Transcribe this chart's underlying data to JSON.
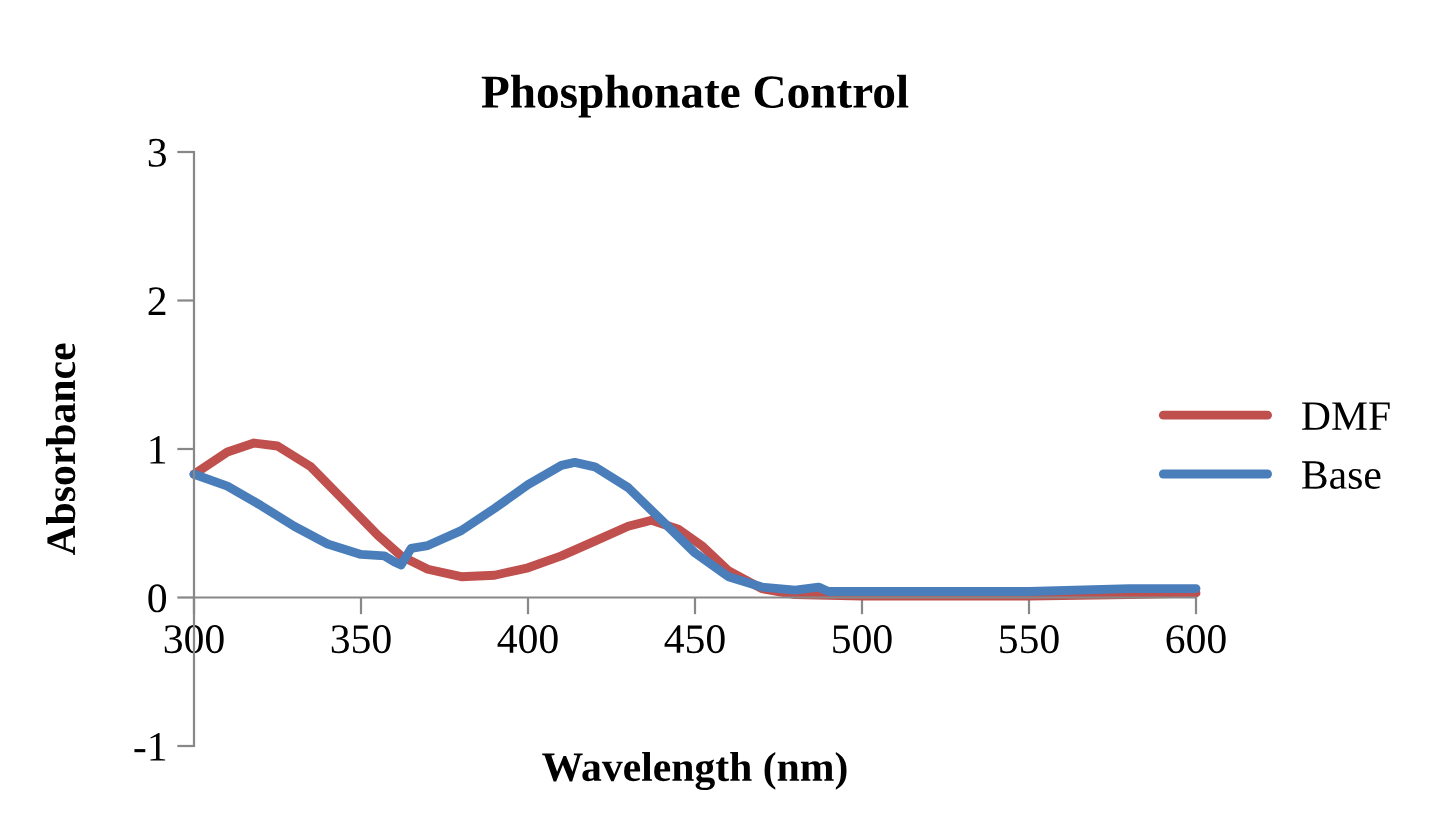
{
  "chart_data": {
    "type": "line",
    "title": "Phosphonate Control",
    "xlabel": "Wavelength (nm)",
    "ylabel": "Absorbance",
    "xlim": [
      300,
      600
    ],
    "xticks": [
      300,
      350,
      400,
      450,
      500,
      550,
      600
    ],
    "ylim": [
      -1,
      3
    ],
    "yticks": [
      -1,
      0,
      1,
      2,
      3
    ],
    "grid": false,
    "legend": "right",
    "marker": "none",
    "line_style": "solid",
    "series": [
      {
        "name": "DMF",
        "color": "#c0504d",
        "x": [
          300,
          310,
          318,
          325,
          335,
          345,
          355,
          362,
          370,
          380,
          390,
          400,
          410,
          420,
          430,
          437,
          445,
          452,
          460,
          470,
          480,
          500,
          550,
          580,
          600
        ],
        "values": [
          0.83,
          0.98,
          1.04,
          1.02,
          0.88,
          0.65,
          0.42,
          0.28,
          0.19,
          0.14,
          0.15,
          0.2,
          0.28,
          0.38,
          0.48,
          0.52,
          0.46,
          0.35,
          0.18,
          0.06,
          0.02,
          0.01,
          0.01,
          0.02,
          0.03
        ]
      },
      {
        "name": "Base",
        "color": "#4a7ebb",
        "x": [
          300,
          310,
          320,
          330,
          340,
          350,
          357,
          360,
          362,
          365,
          370,
          380,
          390,
          400,
          410,
          414,
          420,
          430,
          440,
          450,
          460,
          470,
          480,
          487,
          490,
          550,
          580,
          600
        ],
        "values": [
          0.83,
          0.75,
          0.62,
          0.48,
          0.36,
          0.29,
          0.28,
          0.24,
          0.22,
          0.33,
          0.35,
          0.45,
          0.6,
          0.76,
          0.89,
          0.91,
          0.88,
          0.74,
          0.52,
          0.3,
          0.14,
          0.07,
          0.05,
          0.07,
          0.04,
          0.04,
          0.06,
          0.06
        ]
      }
    ]
  }
}
